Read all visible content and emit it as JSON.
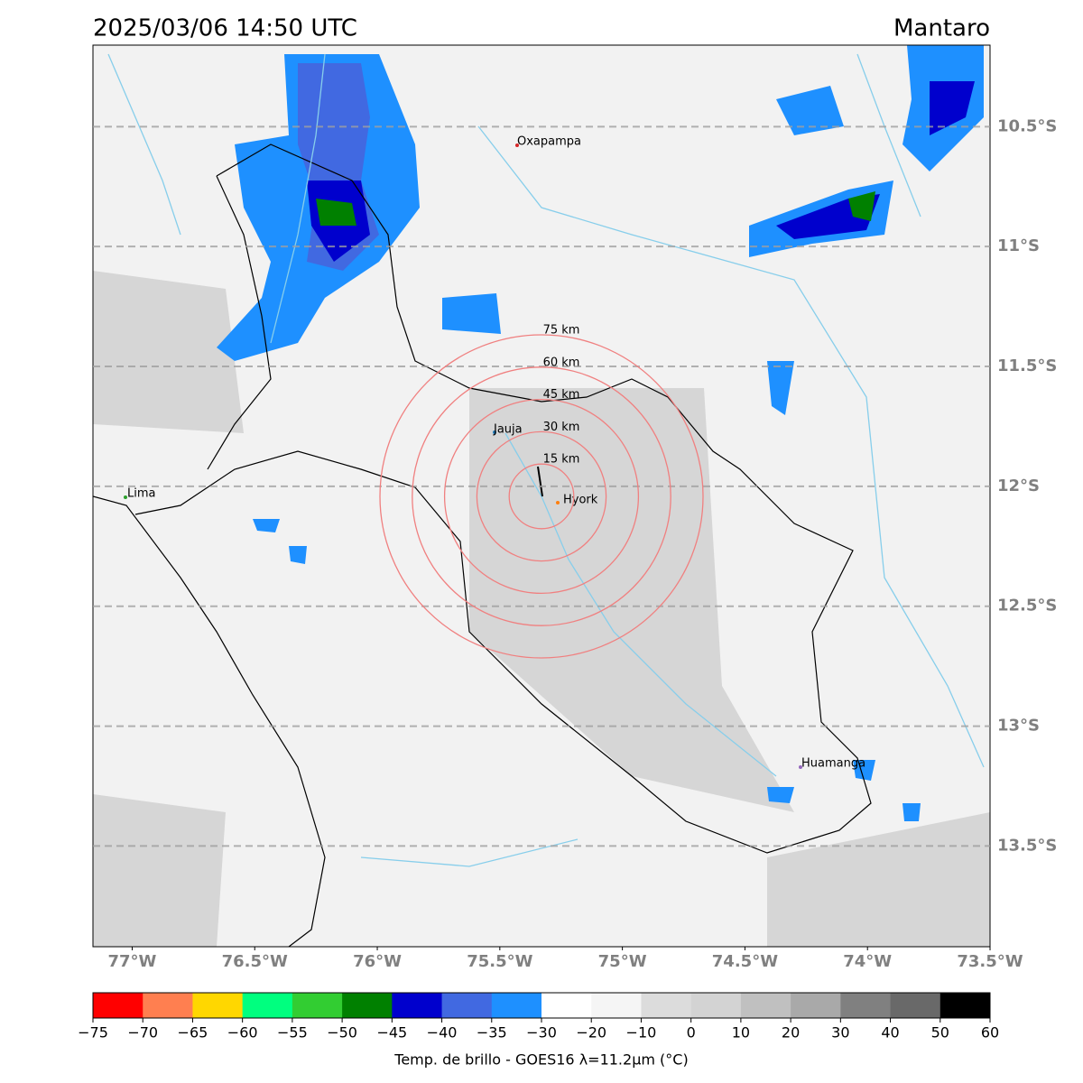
{
  "header": {
    "title": "2025/03/06 14:50 UTC",
    "region": "Mantaro"
  },
  "map": {
    "xlim": [
      -77.16,
      -73.5
    ],
    "ylim": [
      -13.92,
      -10.16
    ],
    "xticks": [
      {
        "value": -77,
        "label": "77°W"
      },
      {
        "value": -76.5,
        "label": "76.5°W"
      },
      {
        "value": -76,
        "label": "76°W"
      },
      {
        "value": -75.5,
        "label": "75.5°W"
      },
      {
        "value": -75,
        "label": "75°W"
      },
      {
        "value": -74.5,
        "label": "74.5°W"
      },
      {
        "value": -74,
        "label": "74°W"
      },
      {
        "value": -73.5,
        "label": "73.5°W"
      }
    ],
    "yticks": [
      {
        "value": -10.5,
        "label": "10.5°S"
      },
      {
        "value": -11,
        "label": "11°S"
      },
      {
        "value": -11.5,
        "label": "11.5°S"
      },
      {
        "value": -12,
        "label": "12°S"
      },
      {
        "value": -12.5,
        "label": "12.5°S"
      },
      {
        "value": -13,
        "label": "13°S"
      },
      {
        "value": -13.5,
        "label": "13.5°S"
      }
    ],
    "grid": true,
    "rings": [
      {
        "value": 15,
        "label": "15 km"
      },
      {
        "value": 30,
        "label": "30 km"
      },
      {
        "value": 45,
        "label": "45 km"
      },
      {
        "value": 60,
        "label": "60 km"
      },
      {
        "value": 75,
        "label": "75 km"
      }
    ],
    "ring_color": "#f08080",
    "cities": [
      "Oxapampa",
      "Jauja",
      "Hyork",
      "Lima",
      "Huamanga"
    ]
  },
  "colorbar": {
    "label": "Temp. de brillo - GOES16 λ=11.2μm (°C)",
    "ticks": [
      {
        "value": -75,
        "label": "−75"
      },
      {
        "value": -70,
        "label": "−70"
      },
      {
        "value": -65,
        "label": "−65"
      },
      {
        "value": -60,
        "label": "−60"
      },
      {
        "value": -55,
        "label": "−55"
      },
      {
        "value": -50,
        "label": "−50"
      },
      {
        "value": -45,
        "label": "−45"
      },
      {
        "value": -40,
        "label": "−40"
      },
      {
        "value": -35,
        "label": "−35"
      },
      {
        "value": -30,
        "label": "−30"
      },
      {
        "value": -20,
        "label": "−20"
      },
      {
        "value": -10,
        "label": "−10"
      },
      0,
      10,
      20,
      30,
      40,
      50,
      60
    ],
    "colors": [
      "#ff0000",
      "#ff7f50",
      "#ffd700",
      "#00ff7f",
      "#32cd32",
      "#008000",
      "#0000cd",
      "#4169e1",
      "#1e90ff",
      "#ffffff",
      "#f5f5f5",
      "#dcdcdc",
      "#d3d3d3",
      "#c0c0c0",
      "#a9a9a9",
      "#808080",
      "#696969",
      "#000000"
    ]
  }
}
